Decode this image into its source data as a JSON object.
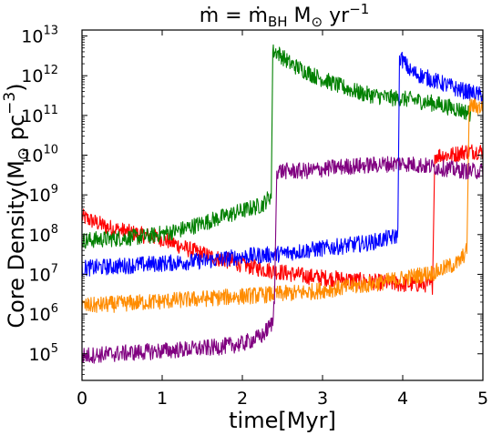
{
  "chart_data": {
    "type": "line",
    "title": "ṁ = ṁ_BH M⊙ yr⁻¹",
    "title_parts": {
      "lhs": "ṁ",
      "eq": " = ",
      "rhs": "ṁ",
      "sub": "BH",
      "unit": " M",
      "sun": "⊙",
      "yr": " yr",
      "exp": "−1"
    },
    "xlabel": "time[Myr]",
    "ylabel_parts": {
      "main": "Core Density(M",
      "sun": "⊙",
      "pc": " pc",
      "exp": "−3",
      "close": ")"
    },
    "xlim": [
      0,
      5
    ],
    "ylim_log10": [
      4.33,
      13.15
    ],
    "y_scale": "log",
    "x_ticks": [
      0,
      1,
      2,
      3,
      4,
      5
    ],
    "x_tick_labels": [
      "0",
      "1",
      "2",
      "3",
      "4",
      "5"
    ],
    "y_tick_exponents": [
      5,
      6,
      7,
      8,
      9,
      10,
      11,
      12,
      13
    ],
    "y_tick_base": "10",
    "grid": false,
    "legend": "none",
    "series": [
      {
        "color": "#ff0000",
        "points": [
          [
            0,
            8.45
          ],
          [
            0.3,
            8.2
          ],
          [
            0.6,
            8.05
          ],
          [
            1.0,
            7.9
          ],
          [
            1.3,
            7.65
          ],
          [
            1.6,
            7.45
          ],
          [
            1.9,
            7.3
          ],
          [
            2.2,
            7.15
          ],
          [
            2.5,
            7.05
          ],
          [
            2.8,
            6.95
          ],
          [
            3.1,
            6.9
          ],
          [
            3.4,
            6.85
          ],
          [
            3.7,
            6.8
          ],
          [
            4.0,
            6.75
          ],
          [
            4.3,
            6.75
          ],
          [
            4.37,
            6.7
          ],
          [
            4.4,
            10.0
          ],
          [
            4.6,
            10.0
          ],
          [
            4.8,
            10.1
          ],
          [
            5.0,
            10.1
          ]
        ]
      },
      {
        "color": "#008000",
        "points": [
          [
            0,
            7.85
          ],
          [
            0.4,
            7.9
          ],
          [
            0.8,
            7.95
          ],
          [
            1.2,
            8.1
          ],
          [
            1.6,
            8.35
          ],
          [
            2.0,
            8.6
          ],
          [
            2.25,
            8.75
          ],
          [
            2.36,
            9.0
          ],
          [
            2.38,
            12.6
          ],
          [
            2.43,
            12.6
          ],
          [
            2.6,
            12.3
          ],
          [
            2.9,
            12.0
          ],
          [
            3.2,
            11.75
          ],
          [
            3.5,
            11.55
          ],
          [
            3.8,
            11.45
          ],
          [
            4.1,
            11.4
          ],
          [
            4.4,
            11.3
          ],
          [
            4.7,
            11.15
          ],
          [
            4.85,
            11.05
          ]
        ]
      },
      {
        "color": "#0000ff",
        "points": [
          [
            0,
            7.15
          ],
          [
            0.4,
            7.2
          ],
          [
            0.8,
            7.25
          ],
          [
            1.2,
            7.3
          ],
          [
            1.6,
            7.35
          ],
          [
            2.0,
            7.45
          ],
          [
            2.4,
            7.5
          ],
          [
            2.8,
            7.6
          ],
          [
            3.2,
            7.7
          ],
          [
            3.6,
            7.8
          ],
          [
            3.9,
            7.95
          ],
          [
            3.94,
            8.0
          ],
          [
            3.96,
            12.5
          ],
          [
            4.1,
            12.1
          ],
          [
            4.3,
            11.95
          ],
          [
            4.5,
            11.8
          ],
          [
            4.7,
            11.65
          ],
          [
            4.9,
            11.55
          ],
          [
            5.0,
            11.5
          ]
        ]
      },
      {
        "color": "#ff8c00",
        "points": [
          [
            0,
            6.2
          ],
          [
            0.4,
            6.25
          ],
          [
            0.8,
            6.3
          ],
          [
            1.2,
            6.35
          ],
          [
            1.6,
            6.4
          ],
          [
            2.0,
            6.45
          ],
          [
            2.4,
            6.5
          ],
          [
            2.8,
            6.55
          ],
          [
            3.2,
            6.65
          ],
          [
            3.6,
            6.75
          ],
          [
            4.0,
            6.9
          ],
          [
            4.4,
            7.05
          ],
          [
            4.7,
            7.3
          ],
          [
            4.8,
            7.6
          ],
          [
            4.83,
            11.25
          ],
          [
            5.0,
            11.2
          ]
        ]
      },
      {
        "color": "#800080",
        "points": [
          [
            0,
            4.95
          ],
          [
            0.4,
            5.0
          ],
          [
            0.8,
            5.05
          ],
          [
            1.2,
            5.1
          ],
          [
            1.6,
            5.15
          ],
          [
            2.0,
            5.25
          ],
          [
            2.25,
            5.45
          ],
          [
            2.38,
            5.8
          ],
          [
            2.4,
            6.45
          ],
          [
            2.43,
            9.6
          ],
          [
            2.8,
            9.6
          ],
          [
            3.2,
            9.7
          ],
          [
            3.6,
            9.75
          ],
          [
            4.0,
            9.8
          ],
          [
            4.4,
            9.7
          ],
          [
            4.8,
            9.6
          ],
          [
            5.0,
            9.6
          ]
        ]
      }
    ]
  }
}
